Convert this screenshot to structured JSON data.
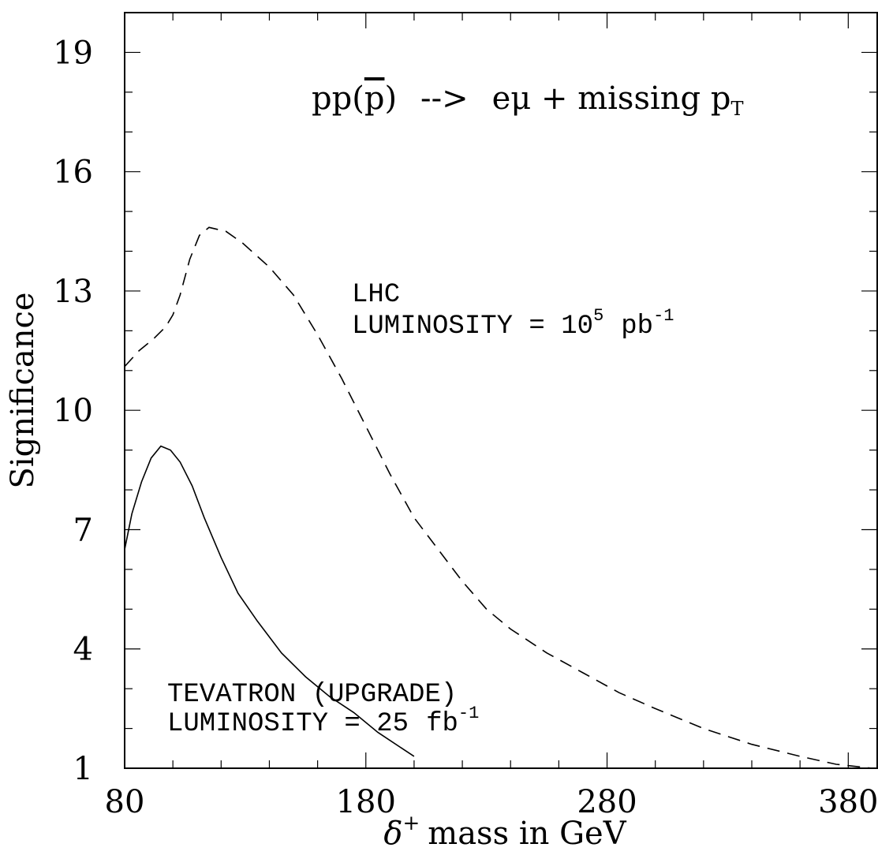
{
  "chart_data": {
    "type": "line",
    "title": "",
    "xlabel": {
      "symbol": "δ",
      "superscript": "+",
      "text": "mass in GeV"
    },
    "ylabel": "Significance",
    "xlim": [
      80,
      392
    ],
    "ylim": [
      1,
      20
    ],
    "x_ticks": [
      "80",
      "180",
      "280",
      "380"
    ],
    "y_ticks": [
      "1",
      "4",
      "7",
      "10",
      "13",
      "16",
      "19"
    ],
    "grid": false,
    "process": {
      "prefix": "pp(",
      "pbar": "p",
      "suffix": ")",
      "arrow": "-->",
      "final_state": "eμ + missing p",
      "subscript": "T"
    },
    "annotations": {
      "lhc_name": "LHC",
      "lhc_lumi_text": "LUMINOSITY = 10",
      "lhc_lumi_exp": "5",
      "lhc_lumi_unit": "pb",
      "lhc_lumi_unit_exp": "-1",
      "tev_name": "TEVATRON (UPGRADE)",
      "tev_lumi_text": "LUMINOSITY = 25",
      "tev_lumi_unit": "fb",
      "tev_lumi_unit_exp": "-1"
    },
    "series": [
      {
        "style": "dashed",
        "x": [
          80,
          86,
          92,
          97,
          100,
          103,
          107,
          111,
          115,
          122,
          129,
          140,
          150,
          160,
          170,
          180,
          190,
          200,
          210,
          220,
          230,
          240,
          255,
          270,
          285,
          300,
          320,
          340,
          360,
          375,
          390
        ],
        "y": [
          11.1,
          11.5,
          11.8,
          12.1,
          12.4,
          12.9,
          13.8,
          14.4,
          14.6,
          14.5,
          14.2,
          13.6,
          12.9,
          11.9,
          10.8,
          9.6,
          8.4,
          7.3,
          6.5,
          5.7,
          5.0,
          4.5,
          3.9,
          3.4,
          2.9,
          2.5,
          2.0,
          1.6,
          1.3,
          1.1,
          1.0
        ]
      },
      {
        "style": "solid",
        "x": [
          80,
          83,
          87,
          91,
          95,
          99,
          103,
          108,
          113,
          120,
          127,
          135,
          145,
          155,
          165,
          175,
          185,
          195,
          200
        ],
        "y": [
          6.5,
          7.4,
          8.2,
          8.8,
          9.1,
          9.0,
          8.7,
          8.1,
          7.3,
          6.3,
          5.4,
          4.7,
          3.9,
          3.3,
          2.8,
          2.4,
          1.9,
          1.5,
          1.3
        ]
      }
    ]
  }
}
